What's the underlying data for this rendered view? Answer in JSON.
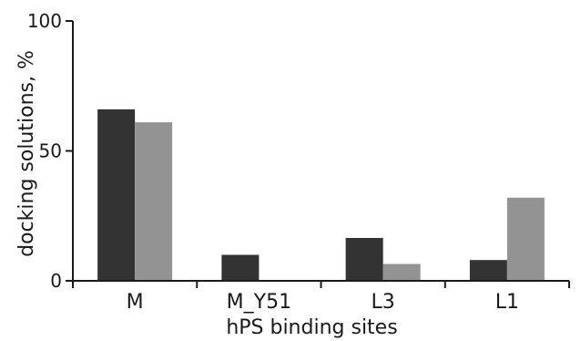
{
  "chart_data": {
    "type": "bar",
    "title": "",
    "xlabel": "hPS binding sites",
    "ylabel": "docking solutions, %",
    "categories": [
      "M",
      "M_Y51",
      "L3",
      "L1"
    ],
    "series": [
      {
        "values": [
          66,
          10,
          16.5,
          8
        ],
        "color": "#333333"
      },
      {
        "values": [
          61,
          0,
          6.5,
          32
        ],
        "color": "#939393"
      }
    ],
    "ylim": [
      0,
      100
    ],
    "yticks": [
      0,
      50,
      100
    ],
    "grid": false,
    "legend": "none"
  }
}
